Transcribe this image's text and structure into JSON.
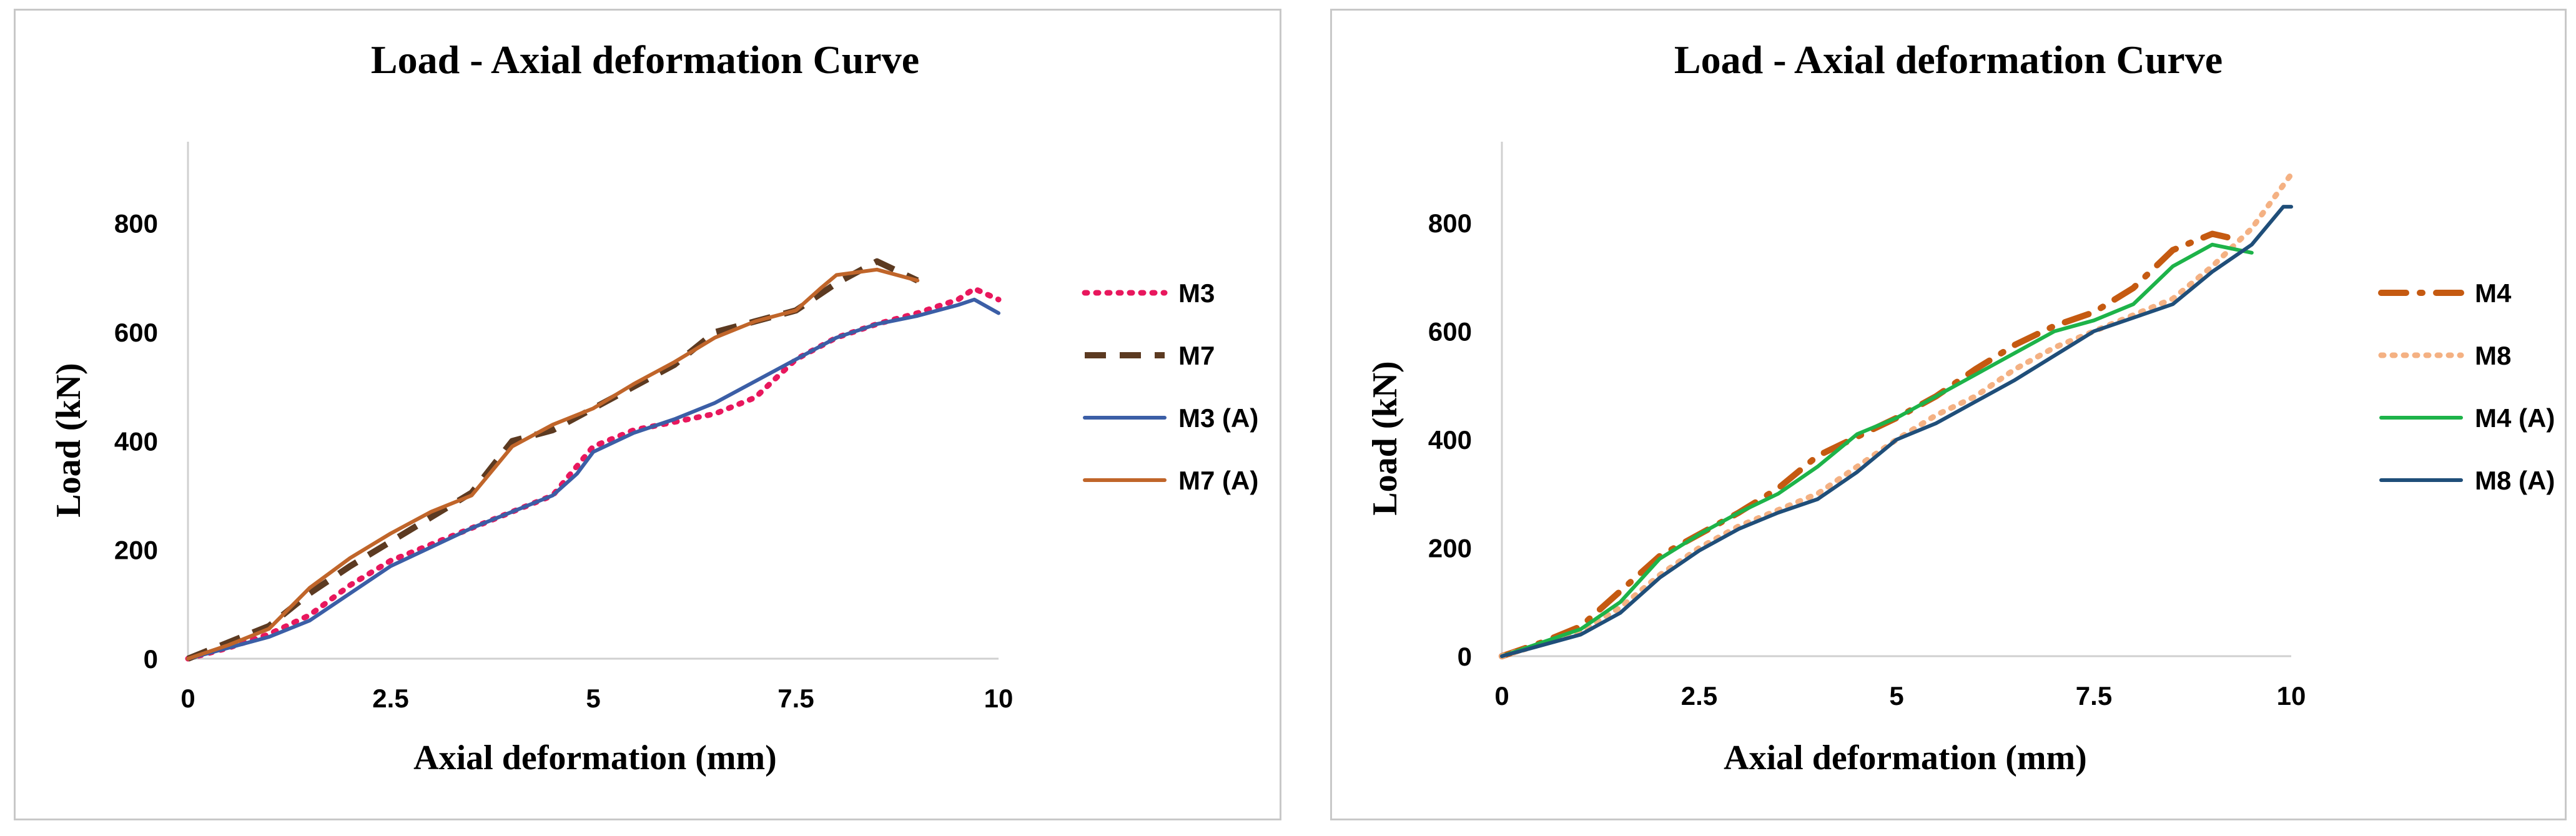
{
  "chart_data": [
    {
      "type": "line",
      "title": "Load - Axial deformation  Curve",
      "xlabel": "Axial deformation (mm)",
      "ylabel": "Load (kN)",
      "xlim": [
        0,
        10
      ],
      "ylim": [
        0,
        950
      ],
      "xticks": [
        0,
        2.5,
        5,
        7.5,
        10
      ],
      "xtick_labels": [
        "0",
        "2.5",
        "5",
        "7.5",
        "10"
      ],
      "yticks": [
        0,
        200,
        400,
        600,
        800
      ],
      "ytick_labels": [
        "0",
        "200",
        "400",
        "600",
        "800"
      ],
      "series": [
        {
          "name": "M3",
          "color": "#e8175d",
          "style": "dotted",
          "x": [
            0,
            0.5,
            1,
            1.5,
            2,
            2.5,
            3,
            3.5,
            4,
            4.5,
            5,
            5.5,
            6,
            6.5,
            7,
            7.5,
            8,
            8.5,
            9,
            9.5,
            9.7,
            10
          ],
          "y": [
            0,
            20,
            45,
            80,
            135,
            180,
            210,
            240,
            270,
            300,
            390,
            420,
            435,
            450,
            480,
            550,
            590,
            615,
            635,
            660,
            680,
            660
          ]
        },
        {
          "name": "M7",
          "color": "#5c3a21",
          "style": "dashed",
          "x": [
            0,
            0.5,
            1,
            1.5,
            2,
            2.5,
            3,
            3.5,
            4,
            4.5,
            5,
            5.5,
            6,
            6.5,
            7,
            7.5,
            8,
            8.5,
            9
          ],
          "y": [
            0,
            30,
            60,
            120,
            170,
            215,
            260,
            305,
            400,
            420,
            460,
            500,
            540,
            600,
            620,
            640,
            690,
            730,
            695
          ]
        },
        {
          "name": "M3 (A)",
          "color": "#3b5ea6",
          "style": "solid",
          "x": [
            0,
            0.5,
            1,
            1.5,
            2,
            2.5,
            3,
            3.5,
            4,
            4.5,
            4.8,
            5,
            5.5,
            6,
            6.5,
            7,
            7.5,
            8,
            8.5,
            9,
            9.5,
            9.7,
            10
          ],
          "y": [
            0,
            20,
            40,
            70,
            120,
            170,
            205,
            240,
            270,
            300,
            340,
            380,
            415,
            440,
            470,
            510,
            550,
            590,
            615,
            630,
            650,
            660,
            635
          ]
        },
        {
          "name": "M7 (A)",
          "color": "#c0652a",
          "style": "solid",
          "x": [
            0,
            0.5,
            1,
            1.5,
            2,
            2.5,
            3,
            3.5,
            4,
            4.5,
            5,
            5.5,
            6,
            6.5,
            7,
            7.5,
            7.8,
            8,
            8.5,
            9
          ],
          "y": [
            0,
            25,
            55,
            130,
            185,
            230,
            270,
            300,
            390,
            430,
            460,
            505,
            545,
            590,
            620,
            640,
            680,
            705,
            715,
            695
          ]
        }
      ]
    },
    {
      "type": "line",
      "title": "Load - Axial deformation  Curve",
      "xlabel": "Axial deformation (mm)",
      "ylabel": "Load (kN)",
      "xlim": [
        0,
        10
      ],
      "ylim": [
        0,
        950
      ],
      "xticks": [
        0,
        2.5,
        5,
        7.5,
        10
      ],
      "xtick_labels": [
        "0",
        "2.5",
        "5",
        "7.5",
        "10"
      ],
      "yticks": [
        0,
        200,
        400,
        600,
        800
      ],
      "ytick_labels": [
        "0",
        "200",
        "400",
        "600",
        "800"
      ],
      "series": [
        {
          "name": "M4",
          "color": "#c55a11",
          "style": "dashdot",
          "x": [
            0,
            0.5,
            1,
            1.5,
            2,
            2.5,
            3,
            3.5,
            4,
            4.5,
            5,
            5.5,
            6,
            6.5,
            7,
            7.5,
            8,
            8.5,
            9,
            9.3
          ],
          "y": [
            0,
            25,
            55,
            120,
            185,
            225,
            265,
            310,
            370,
            405,
            440,
            480,
            530,
            575,
            610,
            635,
            680,
            750,
            780,
            770
          ]
        },
        {
          "name": "M8",
          "color": "#f4b183",
          "style": "dotted",
          "x": [
            0,
            0.5,
            1,
            1.5,
            2,
            2.5,
            3,
            3.5,
            4,
            4.5,
            5,
            5.5,
            6,
            6.5,
            7,
            7.5,
            8,
            8.5,
            9,
            9.5,
            10
          ],
          "y": [
            0,
            22,
            45,
            90,
            150,
            200,
            240,
            270,
            300,
            350,
            400,
            445,
            480,
            530,
            570,
            600,
            630,
            660,
            720,
            790,
            890
          ]
        },
        {
          "name": "M4 (A)",
          "color": "#1db349",
          "style": "solid",
          "x": [
            0,
            0.5,
            1,
            1.5,
            2,
            2.5,
            3,
            3.5,
            4,
            4.5,
            5,
            5.5,
            6,
            6.5,
            7,
            7.5,
            8,
            8.5,
            9,
            9.5
          ],
          "y": [
            0,
            25,
            50,
            100,
            180,
            225,
            265,
            300,
            350,
            410,
            440,
            480,
            520,
            560,
            600,
            620,
            650,
            720,
            760,
            745
          ]
        },
        {
          "name": "M8 (A)",
          "color": "#1f4e79",
          "style": "solid",
          "x": [
            0,
            0.5,
            1,
            1.5,
            2,
            2.5,
            3,
            3.5,
            4,
            4.5,
            5,
            5.5,
            6,
            6.5,
            7,
            7.5,
            8,
            8.5,
            9,
            9.5,
            9.9,
            10
          ],
          "y": [
            0,
            20,
            40,
            80,
            145,
            195,
            235,
            265,
            290,
            340,
            400,
            430,
            470,
            510,
            555,
            600,
            625,
            650,
            710,
            760,
            830,
            830
          ]
        }
      ]
    }
  ]
}
